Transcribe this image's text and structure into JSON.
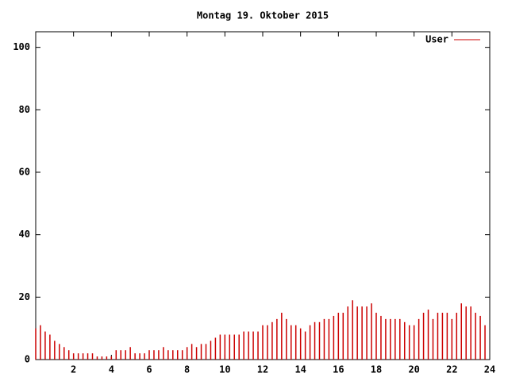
{
  "chart_data": {
    "type": "impulse",
    "title": "Montag 19. Oktober 2015",
    "x": [
      0,
      0.25,
      0.5,
      0.75,
      1,
      1.25,
      1.5,
      1.75,
      2,
      2.25,
      2.5,
      2.75,
      3,
      3.25,
      3.5,
      3.75,
      4,
      4.25,
      4.5,
      4.75,
      5,
      5.25,
      5.5,
      5.75,
      6,
      6.25,
      6.5,
      6.75,
      7,
      7.25,
      7.5,
      7.75,
      8,
      8.25,
      8.5,
      8.75,
      9,
      9.25,
      9.5,
      9.75,
      10,
      10.25,
      10.5,
      10.75,
      11,
      11.25,
      11.5,
      11.75,
      12,
      12.25,
      12.5,
      12.75,
      13,
      13.25,
      13.5,
      13.75,
      14,
      14.25,
      14.5,
      14.75,
      15,
      15.25,
      15.5,
      15.75,
      16,
      16.25,
      16.5,
      16.75,
      17,
      17.25,
      17.5,
      17.75,
      18,
      18.25,
      18.5,
      18.75,
      19,
      19.25,
      19.5,
      19.75,
      20,
      20.25,
      20.5,
      20.75,
      21,
      21.25,
      21.5,
      21.75,
      22,
      22.25,
      22.5,
      22.75,
      23,
      23.25,
      23.5,
      23.75
    ],
    "series": [
      {
        "name": "User",
        "color": "#cc0000",
        "values": [
          10,
          11,
          9,
          8,
          6,
          5,
          4,
          3,
          2,
          2,
          2,
          2,
          2,
          1,
          1,
          1,
          1,
          3,
          3,
          3,
          4,
          2,
          2,
          2,
          3,
          3,
          3,
          4,
          3,
          3,
          3,
          3,
          4,
          5,
          4,
          5,
          5,
          6,
          7,
          8,
          8,
          8,
          8,
          8,
          9,
          9,
          9,
          9,
          11,
          11,
          12,
          13,
          15,
          13,
          11,
          11,
          10,
          9,
          11,
          12,
          12,
          13,
          13,
          14,
          15,
          15,
          17,
          19,
          17,
          17,
          17,
          18,
          15,
          14,
          13,
          13,
          13,
          13,
          12,
          11,
          11,
          13,
          15,
          16,
          13,
          15,
          15,
          15,
          13,
          15,
          18,
          17,
          17,
          15,
          14,
          11
        ]
      }
    ],
    "xlim": [
      0,
      24
    ],
    "xticks": [
      2,
      4,
      6,
      8,
      10,
      12,
      14,
      16,
      18,
      20,
      22,
      24
    ],
    "ylim": [
      0,
      105
    ],
    "yticks": [
      0,
      20,
      40,
      60,
      80,
      100
    ],
    "legend": "top-right"
  }
}
